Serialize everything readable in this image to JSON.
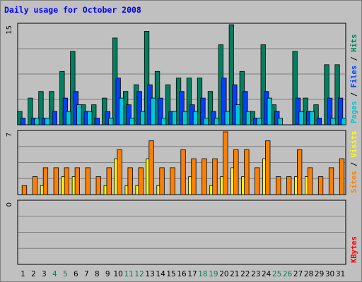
{
  "chart_data": {
    "type": "bar",
    "title": "Daily usage for October 2008",
    "categories": [
      "1",
      "2",
      "3",
      "4",
      "5",
      "6",
      "7",
      "8",
      "9",
      "10",
      "11",
      "12",
      "13",
      "14",
      "15",
      "16",
      "17",
      "18",
      "19",
      "20",
      "21",
      "22",
      "23",
      "24",
      "25",
      "26",
      "27",
      "28",
      "29",
      "30",
      "31"
    ],
    "weekend_days": [
      "4",
      "5",
      "11",
      "12",
      "18",
      "19",
      "25",
      "26"
    ],
    "panels": [
      {
        "name": "hits-files-pages",
        "ymax_label": "15",
        "ylim": [
          0,
          15
        ],
        "right_label_parts": [
          {
            "text": "Pages",
            "color": "#00c8d4"
          },
          {
            "text": " / ",
            "color": "#000000"
          },
          {
            "text": "Files",
            "color": "#0040ff"
          },
          {
            "text": " / ",
            "color": "#000000"
          },
          {
            "text": "Hits",
            "color": "#008060"
          }
        ],
        "series": [
          {
            "name": "Hits",
            "color": "#008060",
            "values": [
              2,
              4,
              5,
              5,
              8,
              11,
              3,
              3,
              4,
              13,
              5,
              6,
              14,
              8,
              6,
              7,
              7,
              7,
              5,
              12,
              15,
              8,
              2,
              12,
              3,
              0,
              11,
              4,
              3,
              9,
              9
            ]
          },
          {
            "name": "Files",
            "color": "#0040ff",
            "values": [
              1,
              1,
              1,
              2,
              4,
              5,
              2,
              1,
              2,
              7,
              3,
              5,
              6,
              4,
              2,
              5,
              3,
              4,
              2,
              7,
              6,
              5,
              1,
              5,
              2,
              0,
              4,
              2,
              1,
              4,
              4
            ]
          },
          {
            "name": "Pages",
            "color": "#00c8d4",
            "values": [
              0,
              1,
              1,
              0,
              2,
              3,
              2,
              0,
              1,
              4,
              1,
              2,
              4,
              1,
              2,
              2,
              2,
              1,
              1,
              2,
              3,
              2,
              1,
              4,
              1,
              0,
              2,
              2,
              0,
              1,
              1
            ]
          }
        ]
      },
      {
        "name": "visits-sites",
        "ymax_label": "7",
        "ylim": [
          0,
          7
        ],
        "right_label_parts": [
          {
            "text": "Sites",
            "color": "#ff8000"
          },
          {
            "text": " / ",
            "color": "#000000"
          },
          {
            "text": "Visits",
            "color": "#ffff00"
          }
        ],
        "series": [
          {
            "name": "Visits",
            "color": "#ffff00",
            "values": [
              0,
              0,
              1,
              0,
              2,
              2,
              0,
              0,
              1,
              4,
              1,
              1,
              4,
              1,
              0,
              0,
              2,
              0,
              1,
              2,
              3,
              2,
              0,
              4,
              0,
              0,
              2,
              2,
              0,
              0,
              0
            ]
          },
          {
            "name": "Sites",
            "color": "#ff8000",
            "values": [
              1,
              2,
              3,
              3,
              3,
              3,
              3,
              2,
              3,
              5,
              3,
              3,
              6,
              3,
              3,
              5,
              4,
              4,
              4,
              7,
              5,
              5,
              3,
              6,
              2,
              2,
              5,
              3,
              2,
              3,
              4
            ]
          }
        ]
      },
      {
        "name": "kbytes",
        "ymax_label": "0",
        "ylim": [
          0,
          1
        ],
        "right_label_parts": [
          {
            "text": "KBytes",
            "color": "#ff0000"
          }
        ],
        "series": [
          {
            "name": "KBytes",
            "color": "#ff0000",
            "values": [
              0,
              0,
              0,
              0,
              0,
              0,
              0,
              0,
              0,
              0,
              0,
              0,
              0,
              0,
              0,
              0,
              0,
              0,
              0,
              0,
              0,
              0,
              0,
              0,
              0,
              0,
              0,
              0,
              0,
              0,
              0
            ]
          }
        ]
      }
    ],
    "grid": true
  },
  "colors": {
    "title": "#0000ff",
    "weekday_label": "#000000",
    "weekend_label": "#00805a",
    "plot_bg": "#c0c0c0",
    "gridline": "#808080"
  }
}
